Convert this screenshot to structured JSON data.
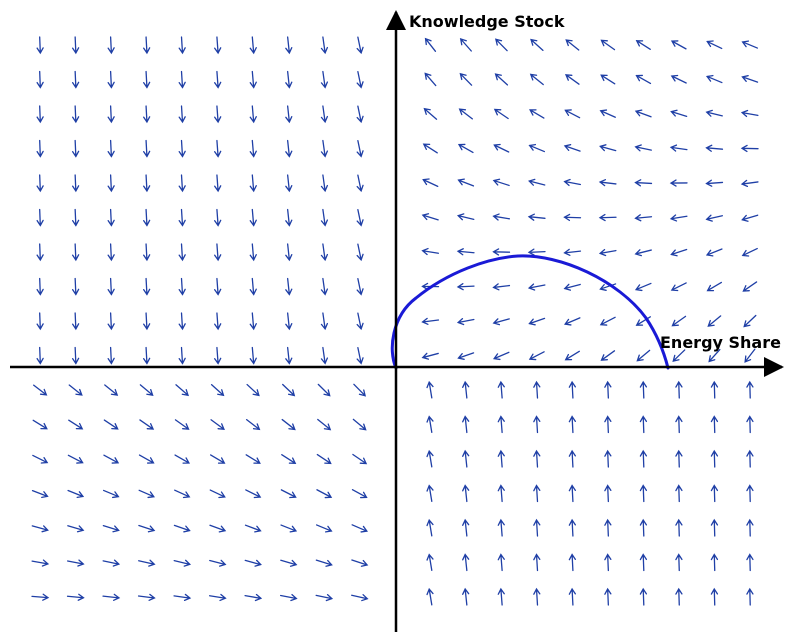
{
  "diagram": {
    "type": "phase portrait / vector field",
    "x_axis_label": "Energy Share",
    "y_axis_label": "Knowledge Stock",
    "colors": {
      "arrows": "#1f3fa6",
      "trajectory": "#1a1ad6",
      "axes": "#000000"
    },
    "arrow_columns": 21,
    "arrow_rows": 17,
    "trajectory": "arc from origin rising to a peak and descending to the positive Energy Share axis"
  }
}
